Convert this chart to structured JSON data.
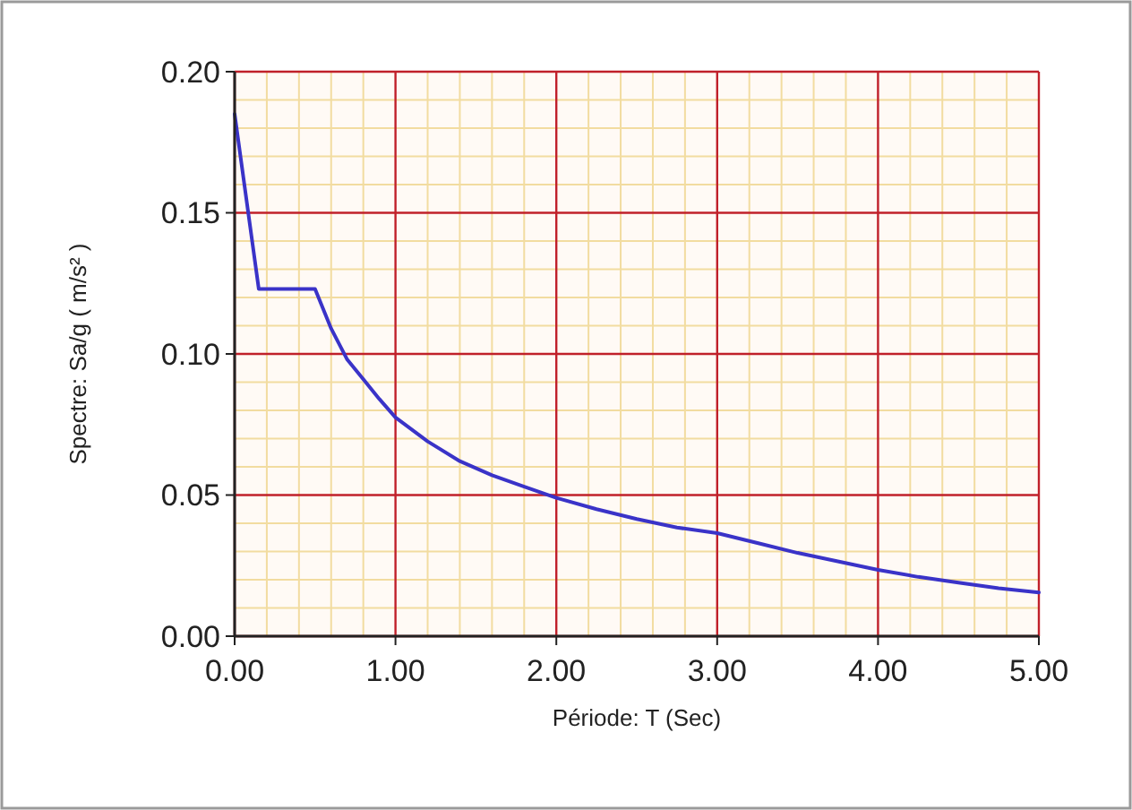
{
  "chart_data": {
    "type": "line",
    "xlabel": "Période: T (Sec)",
    "ylabel": "Spectre: Sa/g ( m/s² )",
    "series": [
      {
        "color": "#3a33c8",
        "x": [
          0,
          0.15,
          0.5,
          0.6,
          0.7,
          0.8,
          0.9,
          1.0,
          1.2,
          1.4,
          1.6,
          1.8,
          2.0,
          2.25,
          2.5,
          2.75,
          3.0,
          3.25,
          3.5,
          3.75,
          4.0,
          4.25,
          4.5,
          4.75,
          5.0
        ],
        "values": [
          0.185,
          0.123,
          0.123,
          0.109,
          0.098,
          0.091,
          0.084,
          0.0775,
          0.069,
          0.062,
          0.057,
          0.053,
          0.049,
          0.045,
          0.0415,
          0.0385,
          0.0365,
          0.033,
          0.0295,
          0.0265,
          0.0235,
          0.021,
          0.019,
          0.017,
          0.0155
        ]
      }
    ],
    "xlim": [
      0,
      5
    ],
    "ylim": [
      0,
      0.2
    ],
    "xticks": [
      {
        "value": 0,
        "label": "0.00"
      },
      {
        "value": 0.2,
        "label": null
      },
      {
        "value": 0.4,
        "label": null
      },
      {
        "value": 0.6,
        "label": null
      },
      {
        "value": 0.8,
        "label": null
      },
      {
        "value": 1,
        "label": "1.00"
      },
      {
        "value": 1.2,
        "label": null
      },
      {
        "value": 1.4,
        "label": null
      },
      {
        "value": 1.6,
        "label": null
      },
      {
        "value": 1.8,
        "label": null
      },
      {
        "value": 2,
        "label": "2.00"
      },
      {
        "value": 2.2,
        "label": null
      },
      {
        "value": 2.4,
        "label": null
      },
      {
        "value": 2.6,
        "label": null
      },
      {
        "value": 2.8,
        "label": null
      },
      {
        "value": 3,
        "label": "3.00"
      },
      {
        "value": 3.2,
        "label": null
      },
      {
        "value": 3.4,
        "label": null
      },
      {
        "value": 3.6,
        "label": null
      },
      {
        "value": 3.8,
        "label": null
      },
      {
        "value": 4,
        "label": "4.00"
      },
      {
        "value": 4.2,
        "label": null
      },
      {
        "value": 4.4,
        "label": null
      },
      {
        "value": 4.6,
        "label": null
      },
      {
        "value": 4.8,
        "label": null
      },
      {
        "value": 5,
        "label": "5.00"
      }
    ],
    "yticks": [
      {
        "value": 0,
        "label": "0.00"
      },
      {
        "value": 0.01,
        "label": null
      },
      {
        "value": 0.02,
        "label": null
      },
      {
        "value": 0.03,
        "label": null
      },
      {
        "value": 0.04,
        "label": null
      },
      {
        "value": 0.05,
        "label": "0.05"
      },
      {
        "value": 0.06,
        "label": null
      },
      {
        "value": 0.07,
        "label": null
      },
      {
        "value": 0.08,
        "label": null
      },
      {
        "value": 0.09,
        "label": null
      },
      {
        "value": 0.1,
        "label": "0.10"
      },
      {
        "value": 0.11,
        "label": null
      },
      {
        "value": 0.12,
        "label": null
      },
      {
        "value": 0.13,
        "label": null
      },
      {
        "value": 0.14,
        "label": null
      },
      {
        "value": 0.15,
        "label": "0.15"
      },
      {
        "value": 0.16,
        "label": null
      },
      {
        "value": 0.17,
        "label": null
      },
      {
        "value": 0.18,
        "label": null
      },
      {
        "value": 0.19,
        "label": null
      },
      {
        "value": 0.2,
        "label": "0.20"
      }
    ],
    "grid": true,
    "marker": "none",
    "line_style": "solid"
  }
}
